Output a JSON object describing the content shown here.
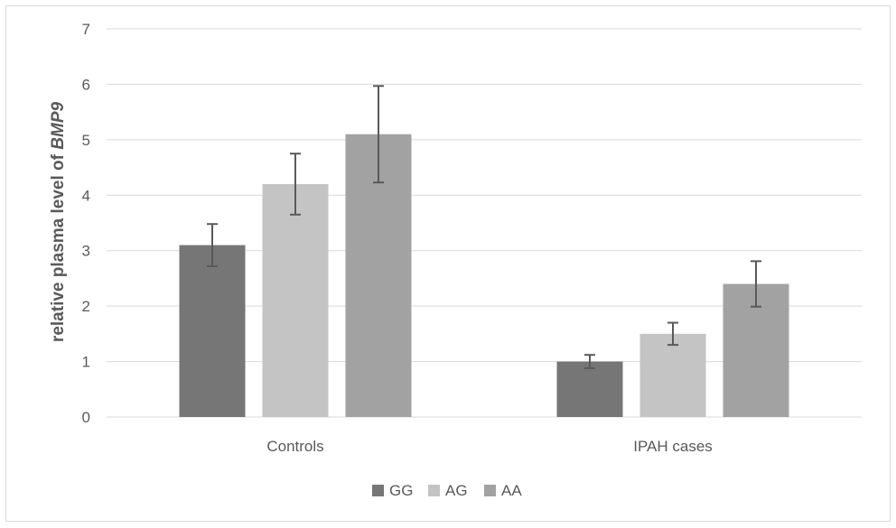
{
  "chart_data": {
    "type": "bar",
    "title": "",
    "xlabel": "",
    "ylabel_prefix": "relative plasma level of ",
    "ylabel_gene": "BMP9",
    "categories": [
      "Controls",
      "IPAH cases"
    ],
    "series": [
      {
        "name": "GG",
        "color": "#767676",
        "values": [
          3.1,
          1.0
        ],
        "error": [
          0.38,
          0.12
        ]
      },
      {
        "name": "AG",
        "color": "#c4c4c4",
        "values": [
          4.2,
          1.5
        ],
        "error": [
          0.55,
          0.2
        ]
      },
      {
        "name": "AA",
        "color": "#a2a2a2",
        "values": [
          5.1,
          2.4
        ],
        "error": [
          0.87,
          0.41
        ]
      }
    ],
    "ylim": [
      0,
      7
    ],
    "yticks": [
      "0",
      "1",
      "2",
      "3",
      "4",
      "5",
      "6",
      "7"
    ],
    "grid": true,
    "legend_position": "bottom"
  }
}
